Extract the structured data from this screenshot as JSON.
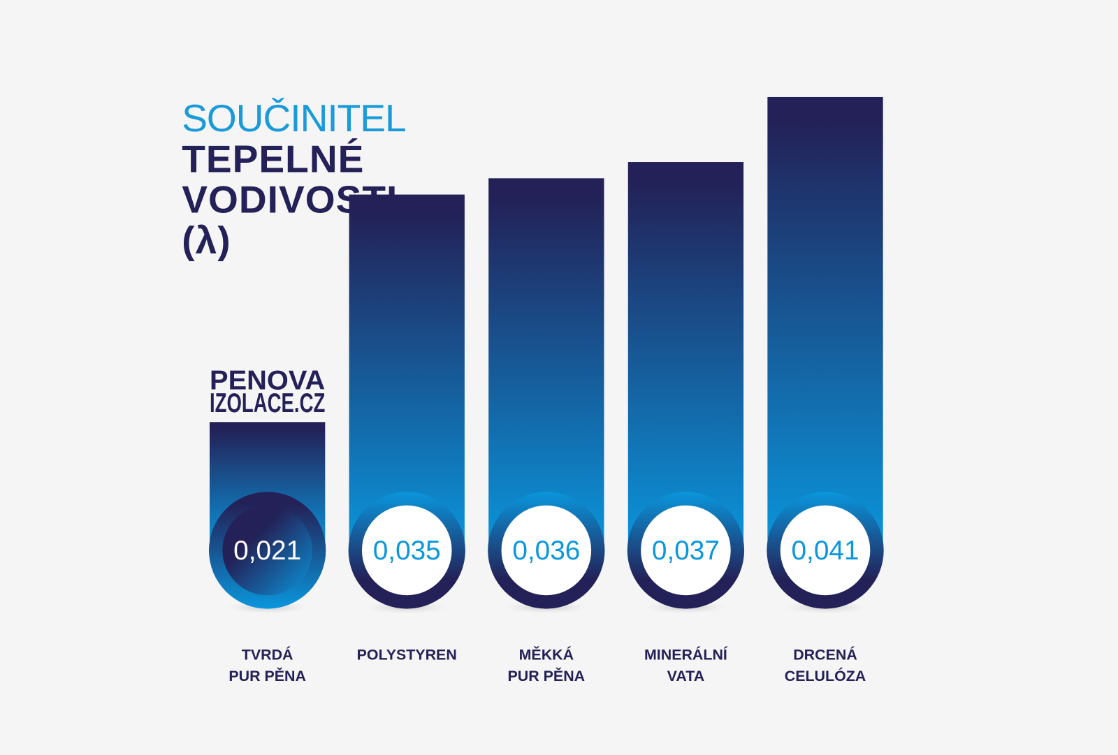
{
  "chart_data": {
    "type": "bar",
    "title": [
      "SOUČINITEL",
      "TEPELNÉ",
      "VODIVOSTI",
      "(λ)"
    ],
    "logo": [
      "PENOVA",
      "IZOLACE.CZ"
    ],
    "categories": [
      [
        "TVRDÁ",
        "PUR PĚNA"
      ],
      [
        "POLYSTYREN"
      ],
      [
        "MĚKKÁ",
        "PUR PĚNA"
      ],
      [
        "MINERÁLNÍ",
        "VATA"
      ],
      [
        "DRCENÁ",
        "CELULÓZA"
      ]
    ],
    "values": [
      0.021,
      0.035,
      0.036,
      0.037,
      0.041
    ],
    "value_labels": [
      "0,021",
      "0,035",
      "0,036",
      "0,037",
      "0,041"
    ],
    "colors": {
      "dark": "#232157",
      "light": "#0a96dc",
      "title_light": "#1a9ad9",
      "label": "#232157"
    }
  }
}
